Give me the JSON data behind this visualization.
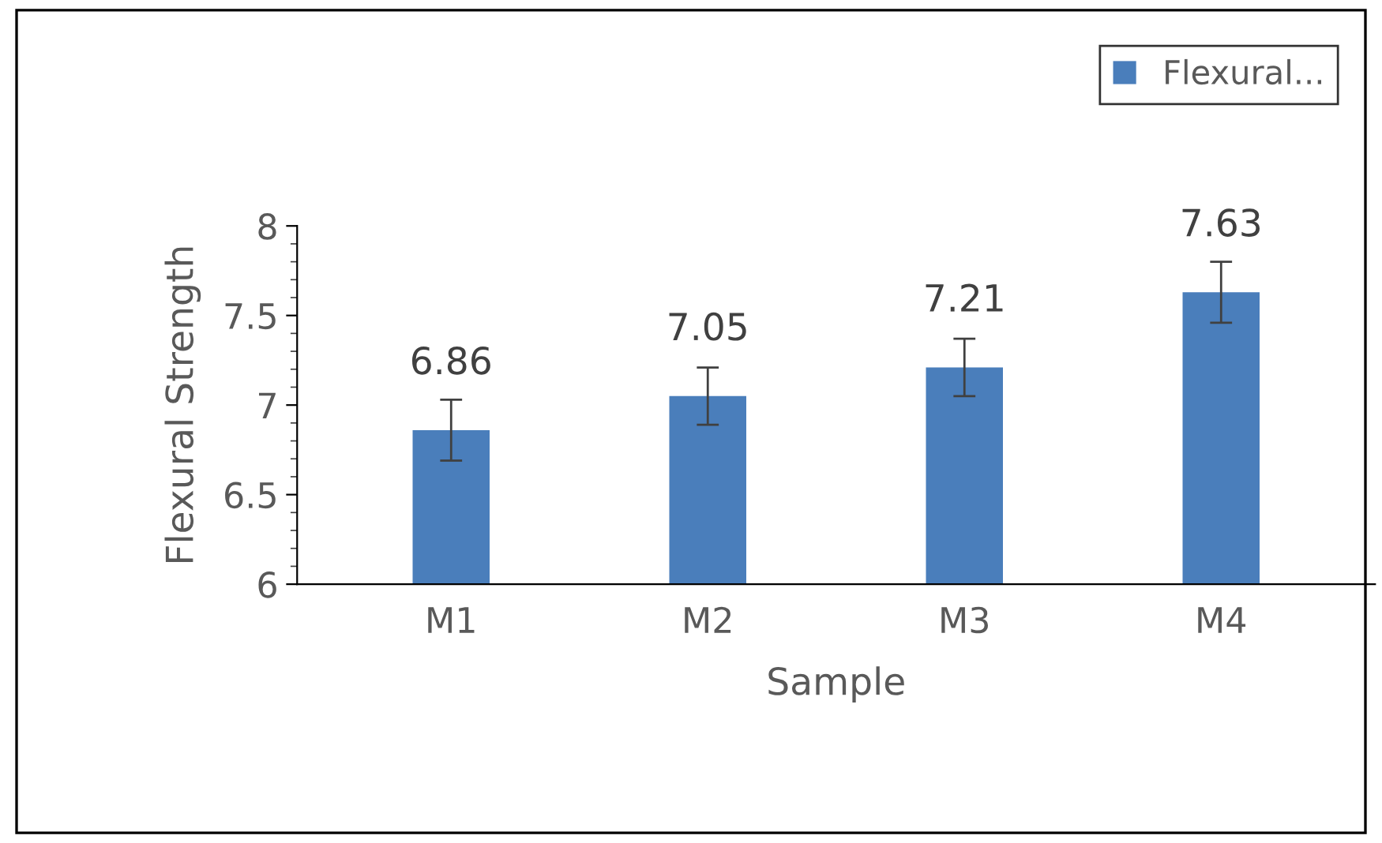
{
  "chart_data": {
    "type": "bar",
    "xlabel": "Sample",
    "ylabel": "Flexural Strength",
    "categories": [
      "M1",
      "M2",
      "M3",
      "M4"
    ],
    "series": [
      {
        "name": "Flexural...",
        "color": "#4a7ebb",
        "values": [
          6.86,
          7.05,
          7.21,
          7.63
        ],
        "errors": [
          0.17,
          0.16,
          0.16,
          0.17
        ]
      }
    ],
    "ylim": [
      6,
      8
    ],
    "yticks": [
      6,
      6.5,
      7,
      7.5,
      8
    ],
    "data_labels": true,
    "grid": false,
    "legend": "top right"
  }
}
